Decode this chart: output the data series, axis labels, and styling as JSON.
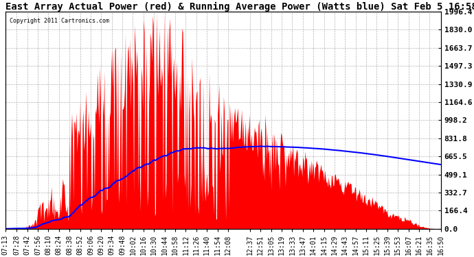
{
  "title": "East Array Actual Power (red) & Running Average Power (Watts blue) Sat Feb 5 16:58",
  "copyright": "Copyright 2011 Cartronics.com",
  "ylabel_right": [
    "1996.4",
    "1830.0",
    "1663.7",
    "1497.3",
    "1330.9",
    "1164.6",
    "998.2",
    "831.8",
    "665.5",
    "499.1",
    "332.7",
    "166.4",
    "0.0"
  ],
  "ymax": 1996.4,
  "ymin": 0.0,
  "background_color": "#ffffff",
  "fill_color": "#ff0000",
  "line_color": "#0000ff",
  "grid_color": "#aaaaaa",
  "title_fontsize": 10,
  "xlabel_fontsize": 7,
  "ylabel_fontsize": 8,
  "x_labels": [
    "07:13",
    "07:28",
    "07:42",
    "07:56",
    "08:10",
    "08:24",
    "08:38",
    "08:52",
    "09:06",
    "09:20",
    "09:34",
    "09:48",
    "10:02",
    "10:16",
    "10:30",
    "10:44",
    "10:58",
    "11:12",
    "11:26",
    "11:40",
    "11:54",
    "12:08",
    "12:37",
    "12:51",
    "13:05",
    "13:19",
    "13:33",
    "13:47",
    "14:01",
    "14:15",
    "14:29",
    "14:43",
    "14:57",
    "15:11",
    "15:25",
    "15:39",
    "15:53",
    "16:07",
    "16:21",
    "16:35",
    "16:50"
  ]
}
